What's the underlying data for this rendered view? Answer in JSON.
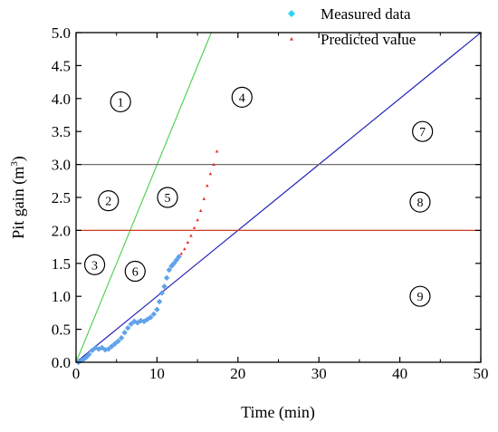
{
  "chart_data": {
    "type": "scatter",
    "xlabel": "Time (min)",
    "ylabel": "Pit gain (m",
    "ylabel_sup": "3",
    "ylabel_close": ")",
    "xlim": [
      0,
      50
    ],
    "ylim": [
      0,
      5
    ],
    "x_ticks": [
      0,
      10,
      20,
      30,
      40,
      50
    ],
    "y_ticks": [
      0.0,
      0.5,
      1.0,
      1.5,
      2.0,
      2.5,
      3.0,
      3.5,
      4.0,
      4.5,
      5.0
    ],
    "x_tick_labels": [
      "0",
      "10",
      "20",
      "30",
      "40",
      "50"
    ],
    "y_tick_labels": [
      "0.0",
      "0.5",
      "1.0",
      "1.5",
      "2.0",
      "2.5",
      "3.0",
      "3.5",
      "4.0",
      "4.5",
      "5.0"
    ],
    "legend_position": "top-right",
    "series": [
      {
        "name": "Measured data",
        "marker": "diamond",
        "color": "#5fa2ea",
        "legend_color": "#2ad4f0",
        "points": [
          [
            0.3,
            0.0
          ],
          [
            0.7,
            0.03
          ],
          [
            1.0,
            0.05
          ],
          [
            1.3,
            0.08
          ],
          [
            1.6,
            0.12
          ],
          [
            2.0,
            0.18
          ],
          [
            2.4,
            0.22
          ],
          [
            2.8,
            0.2
          ],
          [
            3.2,
            0.22
          ],
          [
            3.6,
            0.19
          ],
          [
            4.0,
            0.2
          ],
          [
            4.4,
            0.24
          ],
          [
            4.8,
            0.28
          ],
          [
            5.2,
            0.32
          ],
          [
            5.6,
            0.37
          ],
          [
            6.0,
            0.45
          ],
          [
            6.4,
            0.52
          ],
          [
            6.8,
            0.58
          ],
          [
            7.2,
            0.62
          ],
          [
            7.6,
            0.6
          ],
          [
            8.0,
            0.63
          ],
          [
            8.4,
            0.62
          ],
          [
            8.8,
            0.65
          ],
          [
            9.2,
            0.68
          ],
          [
            9.6,
            0.73
          ],
          [
            10.0,
            0.8
          ],
          [
            10.3,
            0.92
          ],
          [
            10.6,
            1.05
          ],
          [
            10.9,
            1.15
          ],
          [
            11.2,
            1.28
          ],
          [
            11.5,
            1.4
          ],
          [
            11.8,
            1.46
          ],
          [
            12.1,
            1.5
          ],
          [
            12.4,
            1.55
          ],
          [
            12.7,
            1.6
          ]
        ]
      },
      {
        "name": "Predicted value",
        "marker": "triangle",
        "color": "#e8302a",
        "points": [
          [
            13.0,
            1.65
          ],
          [
            13.4,
            1.72
          ],
          [
            13.8,
            1.82
          ],
          [
            14.2,
            1.92
          ],
          [
            14.6,
            2.04
          ],
          [
            15.0,
            2.16
          ],
          [
            15.4,
            2.3
          ],
          [
            15.8,
            2.48
          ],
          [
            16.2,
            2.68
          ],
          [
            16.6,
            2.86
          ],
          [
            17.0,
            3.0
          ],
          [
            17.4,
            3.2
          ]
        ]
      }
    ],
    "lines": [
      {
        "type": "segment",
        "color": "#55d155",
        "from": [
          0,
          0
        ],
        "to": [
          16.7,
          5.0
        ]
      },
      {
        "type": "segment",
        "color": "#2424b8",
        "from": [
          0,
          0
        ],
        "to": [
          50,
          5.0
        ]
      },
      {
        "type": "horizontal",
        "color": "#6f6f6f",
        "y": 3.0
      },
      {
        "type": "horizontal",
        "color": "#d63a2a",
        "y": 2.0
      }
    ],
    "region_labels": [
      {
        "label": "1",
        "x": 5.5,
        "y": 3.95
      },
      {
        "label": "2",
        "x": 4.0,
        "y": 2.45
      },
      {
        "label": "3",
        "x": 2.3,
        "y": 1.48
      },
      {
        "label": "4",
        "x": 20.5,
        "y": 4.02
      },
      {
        "label": "5",
        "x": 11.3,
        "y": 2.5
      },
      {
        "label": "6",
        "x": 7.3,
        "y": 1.38
      },
      {
        "label": "7",
        "x": 42.8,
        "y": 3.5
      },
      {
        "label": "8",
        "x": 42.5,
        "y": 2.43
      },
      {
        "label": "9",
        "x": 42.5,
        "y": 1.0
      }
    ]
  }
}
